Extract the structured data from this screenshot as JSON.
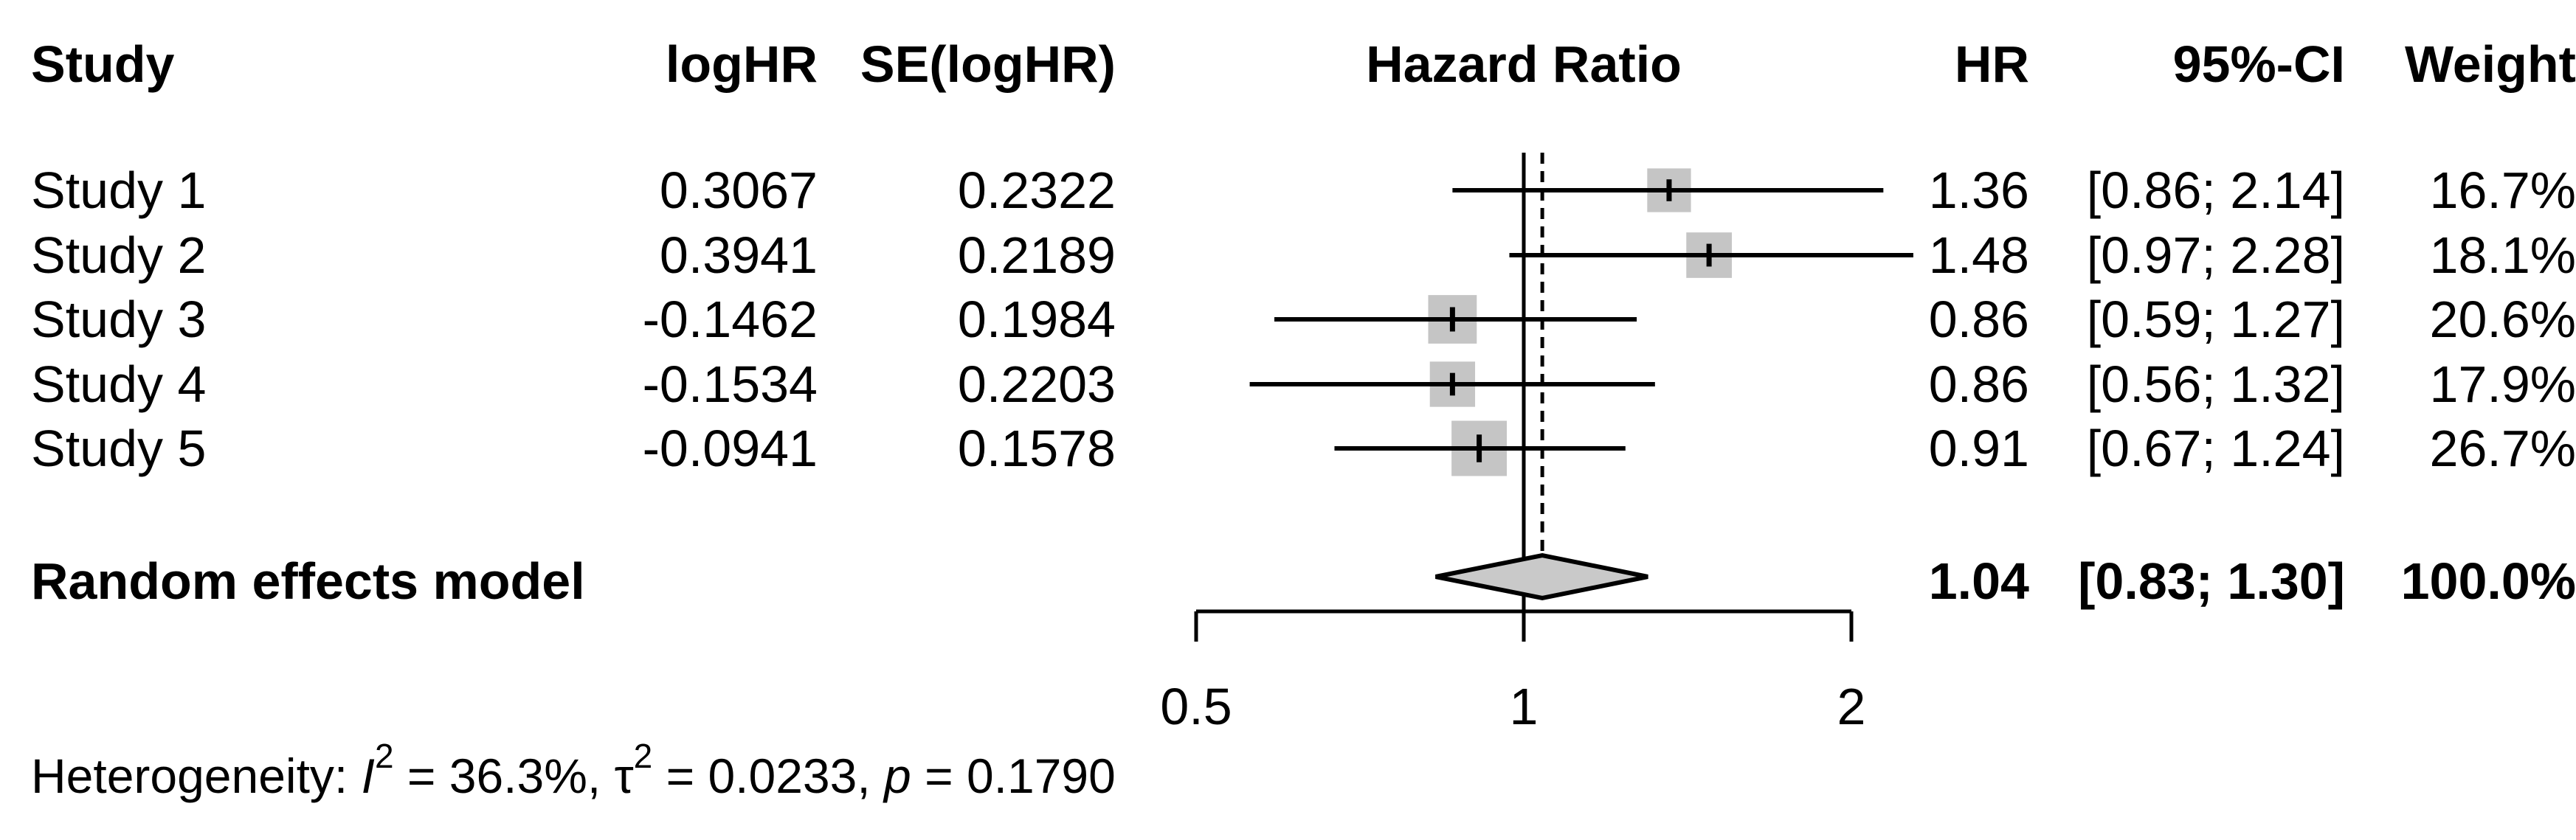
{
  "chart_data": {
    "type": "forest",
    "effect_label": "Hazard Ratio",
    "x_scale": "log",
    "columns": {
      "study": "Study",
      "loghr": "logHR",
      "se": "SE(logHR)",
      "plot": "Hazard Ratio",
      "hr": "HR",
      "ci": "95%-CI",
      "weight": "Weight"
    },
    "x_axis": {
      "ticks": [
        {
          "value": 0.5,
          "label": "0.5"
        },
        {
          "value": 1,
          "label": "1"
        },
        {
          "value": 2,
          "label": "2"
        }
      ],
      "reference_line": 1,
      "dashed_line_at": 1.04
    },
    "studies": [
      {
        "label": "Study 1",
        "loghr": "0.3067",
        "se": "0.2322",
        "hr": 1.36,
        "ci_low": 0.86,
        "ci_high": 2.14,
        "hr_text": "1.36",
        "ci_text": "[0.86; 2.14]",
        "weight": 16.7,
        "weight_text": "16.7%"
      },
      {
        "label": "Study 2",
        "loghr": "0.3941",
        "se": "0.2189",
        "hr": 1.48,
        "ci_low": 0.97,
        "ci_high": 2.28,
        "hr_text": "1.48",
        "ci_text": "[0.97; 2.28]",
        "weight": 18.1,
        "weight_text": "18.1%"
      },
      {
        "label": "Study 3",
        "loghr": "-0.1462",
        "se": "0.1984",
        "hr": 0.86,
        "ci_low": 0.59,
        "ci_high": 1.27,
        "hr_text": "0.86",
        "ci_text": "[0.59; 1.27]",
        "weight": 20.6,
        "weight_text": "20.6%"
      },
      {
        "label": "Study 4",
        "loghr": "-0.1534",
        "se": "0.2203",
        "hr": 0.86,
        "ci_low": 0.56,
        "ci_high": 1.32,
        "hr_text": "0.86",
        "ci_text": "[0.56; 1.32]",
        "weight": 17.9,
        "weight_text": "17.9%"
      },
      {
        "label": "Study 5",
        "loghr": "-0.0941",
        "se": "0.1578",
        "hr": 0.91,
        "ci_low": 0.67,
        "ci_high": 1.24,
        "hr_text": "0.91",
        "ci_text": "[0.67; 1.24]",
        "weight": 26.7,
        "weight_text": "26.7%"
      }
    ],
    "summary": {
      "label": "Random effects model",
      "hr": 1.04,
      "ci_low": 0.83,
      "ci_high": 1.3,
      "hr_text": "1.04",
      "ci_text": "[0.83; 1.30]",
      "weight_text": "100.0%"
    },
    "heterogeneity": {
      "prefix": "Heterogeneity: ",
      "i_symbol": "I",
      "i_sup": "2",
      "seg1": " = 36.3%, ",
      "tau_symbol": "τ",
      "tau_sup": "2",
      "seg2": " = 0.0233, ",
      "p_symbol": "p",
      "seg3": " = 0.1790"
    },
    "colors": {
      "background": "#ffffff",
      "text": "#000000",
      "line": "#000000",
      "square_fill": "#c5c5c5",
      "diamond_fill": "#c9c9c9"
    }
  }
}
